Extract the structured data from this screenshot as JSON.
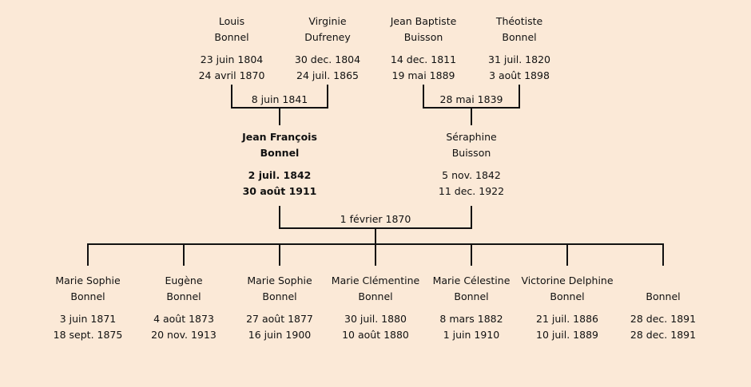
{
  "grandparents": [
    {
      "first": "Louis",
      "last": "Bonnel",
      "birth": "23 juin 1804",
      "death": "24 avril 1870"
    },
    {
      "first": "Virginie",
      "last": "Dufreney",
      "birth": "30 dec. 1804",
      "death": "24 juil. 1865"
    },
    {
      "first": "Jean Baptiste",
      "last": "Buisson",
      "birth": "14 dec. 1811",
      "death": "19 mai 1889"
    },
    {
      "first": "Théotiste",
      "last": "Bonnel",
      "birth": "31 juil. 1820",
      "death": "3 août 1898"
    }
  ],
  "parents": [
    {
      "first": "Jean François",
      "last": "Bonnel",
      "birth": "2 juil. 1842",
      "death": "30 août 1911",
      "highlighted": true
    },
    {
      "first": "Séraphine",
      "last": "Buisson",
      "birth": "5 nov. 1842",
      "death": "11 dec. 1922"
    }
  ],
  "children": [
    {
      "first": "Marie Sophie",
      "last": "Bonnel",
      "birth": "3 juin 1871",
      "death": "18 sept. 1875"
    },
    {
      "first": "Eugène",
      "last": "Bonnel",
      "birth": "4 août 1873",
      "death": "20 nov. 1913"
    },
    {
      "first": "Marie Sophie",
      "last": "Bonnel",
      "birth": "27 août 1877",
      "death": "16 juin 1900"
    },
    {
      "first": "Marie Clémentine",
      "last": "Bonnel",
      "birth": "30 juil. 1880",
      "death": "10 août 1880"
    },
    {
      "first": "Marie Célestine",
      "last": "Bonnel",
      "birth": "8 mars 1882",
      "death": "1 juin 1910"
    },
    {
      "first": "Victorine Delphine",
      "last": "Bonnel",
      "birth": "21 juil. 1886",
      "death": "10 juil. 1889"
    },
    {
      "first": "",
      "last": "Bonnel",
      "birth": "28 dec. 1891",
      "death": "28 dec. 1891"
    }
  ],
  "marriages": {
    "paternal": "8 juin 1841",
    "maternal": "28 mai 1839",
    "parents": "1 février 1870"
  },
  "colors": {
    "background": "#fbe9d7",
    "lines": "#111111"
  }
}
